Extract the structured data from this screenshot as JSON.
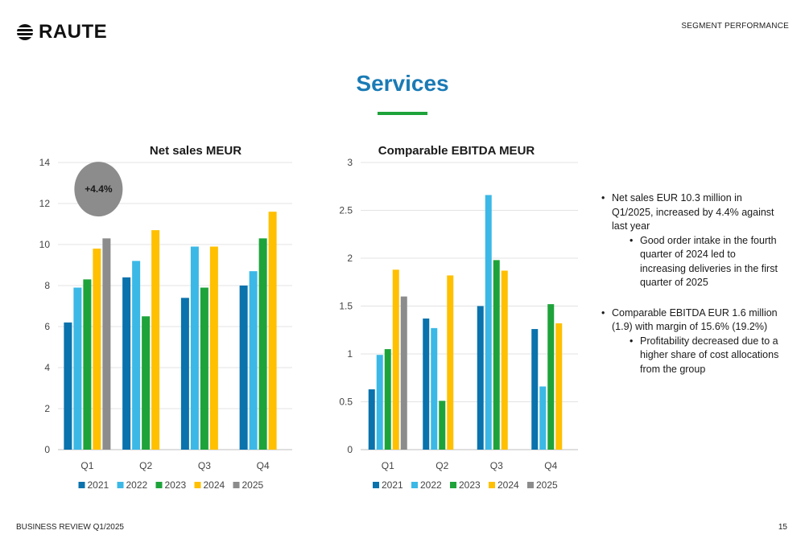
{
  "header": {
    "logo_text": "RAUTE",
    "section_label": "SEGMENT PERFORMANCE"
  },
  "page_title": "Services",
  "colors": {
    "title": "#1a7bb5",
    "accent_rule": "#1ea33a",
    "series": [
      "#0a72ac",
      "#3bb8e6",
      "#1ea33a",
      "#ffc000",
      "#8c8c8c"
    ],
    "badge": "#8c8c8c"
  },
  "chart_data": [
    {
      "type": "bar",
      "title": "Net sales MEUR",
      "categories": [
        "Q1",
        "Q2",
        "Q3",
        "Q4"
      ],
      "series": [
        {
          "name": "2021",
          "values": [
            6.2,
            8.4,
            7.4,
            8.0
          ]
        },
        {
          "name": "2022",
          "values": [
            7.9,
            9.2,
            9.9,
            8.7
          ]
        },
        {
          "name": "2023",
          "values": [
            8.3,
            6.5,
            7.9,
            10.3
          ]
        },
        {
          "name": "2024",
          "values": [
            9.8,
            10.7,
            9.9,
            11.6
          ]
        },
        {
          "name": "2025",
          "values": [
            10.3,
            null,
            null,
            null
          ]
        }
      ],
      "ylim": [
        0,
        14
      ],
      "yticks": [
        "0",
        "2",
        "4",
        "6",
        "8",
        "10",
        "12",
        "14"
      ],
      "ytick_values": [
        0,
        2,
        4,
        6,
        8,
        10,
        12,
        14
      ],
      "grid": true,
      "legend": "bottom",
      "annotation": {
        "text": "+4.4%",
        "category": "Q1"
      }
    },
    {
      "type": "bar",
      "title": "Comparable EBITDA MEUR",
      "categories": [
        "Q1",
        "Q2",
        "Q3",
        "Q4"
      ],
      "series": [
        {
          "name": "2021",
          "values": [
            0.63,
            1.37,
            1.5,
            1.26
          ]
        },
        {
          "name": "2022",
          "values": [
            0.99,
            1.27,
            2.66,
            0.66
          ]
        },
        {
          "name": "2023",
          "values": [
            1.05,
            0.51,
            1.98,
            1.52
          ]
        },
        {
          "name": "2024",
          "values": [
            1.88,
            1.82,
            1.87,
            1.32
          ]
        },
        {
          "name": "2025",
          "values": [
            1.6,
            null,
            null,
            null
          ]
        }
      ],
      "ylim": [
        0,
        3
      ],
      "yticks": [
        "0",
        "0.5",
        "1",
        "1.5",
        "2",
        "2.5",
        "3"
      ],
      "ytick_values": [
        0,
        0.5,
        1,
        1.5,
        2,
        2.5,
        3
      ],
      "grid": true,
      "legend": "bottom"
    }
  ],
  "bullets": [
    {
      "text": "Net sales EUR 10.3 million in Q1/2025, increased by 4.4% against last year",
      "sub": [
        "Good order intake in the fourth quarter of 2024 led to increasing deliveries in the first quarter of 2025"
      ]
    },
    {
      "text": "Comparable EBITDA EUR 1.6 million (1.9) with margin of 15.6% (19.2%)",
      "sub": [
        "Profitability decreased due to a higher share of cost allocations from the group"
      ]
    }
  ],
  "footer": {
    "left": "BUSINESS REVIEW Q1/2025",
    "page_number": "15"
  }
}
